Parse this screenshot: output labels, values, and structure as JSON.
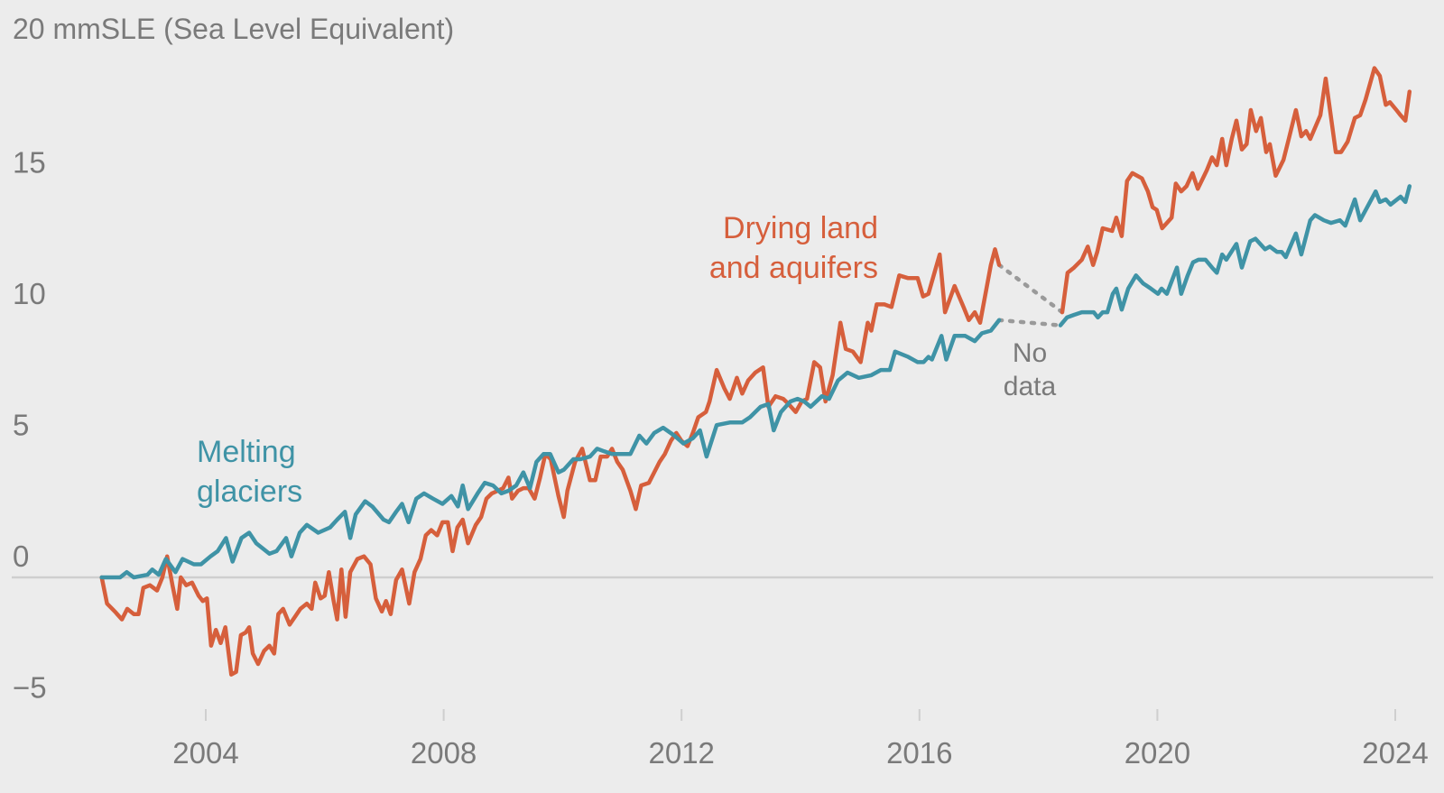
{
  "chart_data": {
    "type": "line",
    "title": "20 mmSLE (Sea Level Equivalent)",
    "xlabel": "",
    "ylabel": "mmSLE (Sea Level Equivalent)",
    "xlim": [
      2002.0,
      2024.6
    ],
    "ylim": [
      -6,
      20
    ],
    "grid": false,
    "zero_line": true,
    "legend": "none (direct labels)",
    "x_ticks": [
      2004,
      2008,
      2012,
      2016,
      2020,
      2024
    ],
    "x_tick_labels": [
      "2004",
      "2008",
      "2012",
      "2016",
      "2020",
      "2024"
    ],
    "y_ticks": [
      -5,
      0,
      5,
      10,
      15
    ],
    "y_tick_labels": [
      "−5",
      "0",
      "5",
      "10",
      "15"
    ],
    "gap": {
      "start": 2017.34,
      "end": 2018.4,
      "label_line1": "No",
      "label_line2": "data",
      "color": "#9a9a9a"
    },
    "series": [
      {
        "name": "Drying land and aquifers",
        "label_line1": "Drying land",
        "label_line2": "and aquifers",
        "color": "#d65f3c",
        "segments": [
          {
            "x": [
              2002.25,
              2002.34,
              2002.47,
              2002.59,
              2002.68,
              2002.79,
              2002.87,
              2002.95,
              2003.06,
              2003.18,
              2003.27,
              2003.35,
              2003.44,
              2003.52,
              2003.58,
              2003.67,
              2003.77,
              2003.88,
              2003.95,
              2004.02,
              2004.09,
              2004.17,
              2004.25,
              2004.33,
              2004.43,
              2004.51,
              2004.59,
              2004.67,
              2004.73,
              2004.79,
              2004.88,
              2004.98,
              2005.07,
              2005.15,
              2005.22,
              2005.3,
              2005.41,
              2005.5,
              2005.59,
              2005.7,
              2005.78,
              2005.84,
              2005.93,
              2006.0,
              2006.07,
              2006.15,
              2006.21,
              2006.28,
              2006.35,
              2006.43,
              2006.55,
              2006.66,
              2006.77,
              2006.86,
              2006.96,
              2007.03,
              2007.11,
              2007.2,
              2007.3,
              2007.42,
              2007.51,
              2007.61,
              2007.7,
              2007.79,
              2007.89,
              2007.98,
              2008.07,
              2008.15,
              2008.23,
              2008.32,
              2008.41,
              2008.54,
              2008.63,
              2008.72,
              2008.81,
              2008.91,
              2009.0,
              2009.09,
              2009.15,
              2009.25,
              2009.34,
              2009.43,
              2009.53,
              2009.62,
              2009.71,
              2009.8,
              2009.93,
              2010.02,
              2010.08,
              2010.21,
              2010.33,
              2010.46,
              2010.55,
              2010.64,
              2010.75,
              2010.83,
              2010.92,
              2011.01,
              2011.14,
              2011.23,
              2011.32,
              2011.45,
              2011.54,
              2011.63,
              2011.72,
              2011.82,
              2011.91,
              2012.0,
              2012.1,
              2012.19,
              2012.28,
              2012.41,
              2012.47,
              2012.59,
              2012.72,
              2012.81,
              2012.93,
              2013.02,
              2013.12,
              2013.24,
              2013.37,
              2013.46,
              2013.58,
              2013.71,
              2013.8,
              2013.92,
              2014.02,
              2014.11,
              2014.23,
              2014.33,
              2014.42,
              2014.54,
              2014.67,
              2014.76,
              2014.88,
              2015.01,
              2015.13,
              2015.19,
              2015.28,
              2015.41,
              2015.53,
              2015.66,
              2015.81,
              2015.97,
              2016.06,
              2016.15,
              2016.34,
              2016.43,
              2016.59,
              2016.74,
              2016.83,
              2016.93,
              2017.02,
              2017.2,
              2017.27,
              2017.34
            ],
            "y": [
              0.0,
              -1.0,
              -1.3,
              -1.6,
              -1.2,
              -1.4,
              -1.4,
              -0.4,
              -0.3,
              -0.5,
              0.0,
              0.8,
              -0.3,
              -1.2,
              0.0,
              -0.3,
              -0.2,
              -0.7,
              -0.9,
              -0.8,
              -2.6,
              -2.0,
              -2.5,
              -1.9,
              -3.7,
              -3.6,
              -2.2,
              -2.1,
              -1.9,
              -2.9,
              -3.3,
              -2.8,
              -2.6,
              -2.9,
              -1.4,
              -1.2,
              -1.8,
              -1.5,
              -1.2,
              -1.0,
              -1.2,
              -0.2,
              -0.8,
              -0.7,
              0.2,
              -0.9,
              -1.6,
              0.3,
              -1.5,
              0.2,
              0.7,
              0.8,
              0.5,
              -0.8,
              -1.3,
              -0.9,
              -1.4,
              -0.1,
              0.3,
              -1.0,
              0.2,
              0.7,
              1.6,
              1.8,
              1.6,
              2.1,
              2.1,
              1.0,
              1.9,
              2.2,
              1.3,
              2.0,
              2.3,
              3.0,
              3.2,
              3.3,
              3.4,
              3.8,
              3.0,
              3.3,
              3.4,
              3.4,
              3.0,
              3.8,
              4.7,
              4.5,
              3.1,
              2.3,
              3.3,
              4.4,
              4.9,
              3.7,
              3.7,
              4.6,
              4.6,
              4.9,
              4.4,
              4.1,
              3.3,
              2.6,
              3.5,
              3.6,
              4.0,
              4.4,
              4.7,
              5.2,
              5.5,
              5.2,
              5.0,
              5.5,
              6.1,
              6.3,
              6.7,
              7.9,
              7.2,
              6.8,
              7.6,
              7.0,
              7.5,
              7.8,
              8.0,
              6.5,
              6.9,
              6.8,
              6.6,
              6.3,
              6.7,
              6.8,
              8.2,
              8.0,
              6.7,
              7.7,
              9.7,
              8.7,
              8.6,
              8.2,
              9.7,
              9.4,
              10.4,
              10.4,
              10.3,
              11.5,
              11.4,
              11.4,
              10.7,
              10.8,
              12.3,
              10.1,
              11.1,
              10.3,
              9.8,
              10.1,
              9.7,
              11.9,
              12.5,
              11.9
            ]
          },
          {
            "x": [
              2018.4,
              2018.49,
              2018.6,
              2018.73,
              2018.83,
              2018.92,
              2018.99,
              2019.08,
              2019.24,
              2019.31,
              2019.4,
              2019.49,
              2019.58,
              2019.74,
              2019.84,
              2019.92,
              2019.99,
              2020.08,
              2020.24,
              2020.31,
              2020.4,
              2020.49,
              2020.59,
              2020.68,
              2020.83,
              2020.92,
              2021.0,
              2021.09,
              2021.16,
              2021.25,
              2021.33,
              2021.42,
              2021.5,
              2021.57,
              2021.66,
              2021.74,
              2021.83,
              2021.89,
              2021.99,
              2022.12,
              2022.21,
              2022.33,
              2022.42,
              2022.5,
              2022.57,
              2022.74,
              2022.83,
              2023.0,
              2023.09,
              2023.2,
              2023.32,
              2023.41,
              2023.5,
              2023.65,
              2023.74,
              2023.84,
              2023.91,
              2024.02,
              2024.09,
              2024.17,
              2024.24
            ],
            "y": [
              10.1,
              11.6,
              11.8,
              12.1,
              12.6,
              11.9,
              12.4,
              13.3,
              13.2,
              13.7,
              13.0,
              15.1,
              15.4,
              15.2,
              14.7,
              14.1,
              14.0,
              13.3,
              13.7,
              15.0,
              14.7,
              14.9,
              15.4,
              14.8,
              15.5,
              16.0,
              15.7,
              16.7,
              15.7,
              16.7,
              17.4,
              16.3,
              16.5,
              17.8,
              17.0,
              17.5,
              16.2,
              16.5,
              15.3,
              15.9,
              16.7,
              17.8,
              16.8,
              17.0,
              16.7,
              17.6,
              19.0,
              16.2,
              16.2,
              16.6,
              17.5,
              17.6,
              18.2,
              19.4,
              19.1,
              18.0,
              18.1,
              17.8,
              17.6,
              17.4,
              18.5
            ]
          }
        ]
      },
      {
        "name": "Melting glaciers",
        "label_line1": "Melting",
        "label_line2": "glaciers",
        "color": "#3f93a6",
        "segments": [
          {
            "x": [
              2002.25,
              2002.56,
              2002.67,
              2002.79,
              2003.02,
              2003.1,
              2003.21,
              2003.33,
              2003.49,
              2003.61,
              2003.8,
              2003.92,
              2004.08,
              2004.2,
              2004.34,
              2004.45,
              2004.6,
              2004.73,
              2004.85,
              2005.07,
              2005.19,
              2005.35,
              2005.44,
              2005.58,
              2005.7,
              2005.89,
              2006.09,
              2006.21,
              2006.34,
              2006.43,
              2006.52,
              2006.68,
              2006.8,
              2006.99,
              2007.08,
              2007.2,
              2007.3,
              2007.41,
              2007.54,
              2007.67,
              2007.82,
              2007.98,
              2008.13,
              2008.24,
              2008.32,
              2008.41,
              2008.57,
              2008.69,
              2008.83,
              2008.97,
              2009.09,
              2009.22,
              2009.34,
              2009.45,
              2009.56,
              2009.68,
              2009.79,
              2009.93,
              2010.02,
              2010.18,
              2010.3,
              2010.46,
              2010.58,
              2010.7,
              2010.83,
              2010.95,
              2011.14,
              2011.29,
              2011.41,
              2011.54,
              2011.69,
              2011.88,
              2012.03,
              2012.19,
              2012.31,
              2012.42,
              2012.59,
              2012.81,
              2013.02,
              2013.15,
              2013.33,
              2013.46,
              2013.55,
              2013.67,
              2013.83,
              2013.95,
              2014.06,
              2014.17,
              2014.36,
              2014.48,
              2014.63,
              2014.79,
              2014.98,
              2015.19,
              2015.35,
              2015.5,
              2015.59,
              2015.81,
              2015.97,
              2016.07,
              2016.15,
              2016.21,
              2016.37,
              2016.45,
              2016.59,
              2016.77,
              2016.93,
              2017.05,
              2017.2,
              2017.34
            ],
            "y": [
              0.0,
              0.0,
              0.2,
              0.0,
              0.1,
              0.3,
              0.1,
              0.7,
              0.2,
              0.7,
              0.5,
              0.5,
              0.8,
              1.0,
              1.5,
              0.6,
              1.5,
              1.7,
              1.3,
              0.9,
              1.0,
              1.5,
              0.8,
              1.7,
              2.0,
              1.7,
              1.9,
              2.2,
              2.5,
              1.5,
              2.4,
              2.9,
              2.7,
              2.2,
              2.1,
              2.5,
              2.8,
              2.1,
              3.0,
              3.2,
              3.0,
              2.8,
              3.1,
              2.7,
              3.5,
              2.6,
              3.2,
              3.6,
              3.5,
              3.2,
              3.3,
              3.5,
              4.0,
              3.4,
              4.4,
              4.7,
              4.7,
              4.0,
              4.1,
              4.5,
              4.5,
              4.6,
              4.9,
              4.8,
              4.7,
              4.7,
              4.7,
              5.4,
              5.1,
              5.5,
              5.7,
              5.4,
              5.1,
              5.3,
              5.6,
              4.6,
              5.8,
              5.9,
              5.9,
              6.1,
              6.5,
              6.6,
              5.6,
              6.3,
              6.7,
              6.8,
              6.7,
              6.5,
              6.9,
              6.8,
              7.5,
              7.8,
              7.6,
              7.7,
              7.9,
              7.9,
              8.6,
              8.4,
              8.2,
              8.2,
              8.4,
              8.3,
              9.2,
              8.3,
              9.2,
              9.2,
              9.0,
              9.3,
              9.4,
              9.8
            ]
          },
          {
            "x": [
              2018.37,
              2018.48,
              2018.6,
              2018.73,
              2018.83,
              2018.93,
              2019.0,
              2019.08,
              2019.16,
              2019.25,
              2019.31,
              2019.4,
              2019.51,
              2019.64,
              2019.76,
              2019.89,
              2020.01,
              2020.07,
              2020.16,
              2020.33,
              2020.4,
              2020.51,
              2020.6,
              2020.69,
              2020.81,
              2020.92,
              2021.0,
              2021.09,
              2021.16,
              2021.33,
              2021.42,
              2021.56,
              2021.65,
              2021.81,
              2021.89,
              2022.01,
              2022.09,
              2022.16,
              2022.33,
              2022.42,
              2022.57,
              2022.65,
              2022.8,
              2022.92,
              2023.07,
              2023.16,
              2023.32,
              2023.41,
              2023.67,
              2023.74,
              2023.84,
              2023.92,
              2024.09,
              2024.17,
              2024.24
            ],
            "y": [
              9.6,
              9.9,
              10.0,
              10.1,
              10.1,
              10.1,
              9.9,
              10.1,
              10.1,
              10.8,
              11.0,
              10.2,
              11.0,
              11.5,
              11.2,
              11.0,
              10.8,
              11.0,
              10.8,
              11.8,
              10.8,
              11.5,
              12.0,
              12.1,
              12.1,
              11.8,
              11.6,
              12.3,
              12.1,
              12.7,
              11.8,
              12.8,
              12.9,
              12.5,
              12.6,
              12.4,
              12.4,
              12.2,
              13.1,
              12.3,
              13.6,
              13.8,
              13.6,
              13.5,
              13.6,
              13.4,
              14.4,
              13.6,
              14.7,
              14.3,
              14.4,
              14.2,
              14.5,
              14.3,
              14.9
            ]
          }
        ]
      }
    ]
  }
}
